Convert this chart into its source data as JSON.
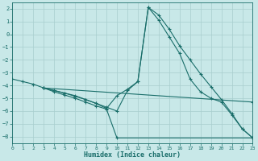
{
  "xlabel": "Humidex (Indice chaleur)",
  "bg_color": "#c8e8e8",
  "line_color": "#1a6e6a",
  "grid_color": "#a8cece",
  "xlim": [
    0,
    23
  ],
  "ylim": [
    -8.5,
    2.5
  ],
  "yticks": [
    2,
    1,
    0,
    -1,
    -2,
    -3,
    -4,
    -5,
    -6,
    -7,
    -8
  ],
  "xticks": [
    0,
    1,
    2,
    3,
    4,
    5,
    6,
    7,
    8,
    9,
    10,
    11,
    12,
    13,
    14,
    15,
    16,
    17,
    18,
    19,
    20,
    21,
    22,
    23
  ],
  "lines": [
    {
      "x": [
        0,
        1,
        2,
        3,
        4,
        5,
        6,
        7,
        8,
        9,
        10,
        11,
        12,
        13,
        14,
        15,
        16,
        17,
        18,
        19,
        20,
        21,
        22,
        23
      ],
      "y": [
        -3.5,
        -3.7,
        -3.9,
        -4.2,
        -4.4,
        -4.6,
        -4.8,
        -5.1,
        -5.4,
        -5.7,
        -6.0,
        -4.4,
        -3.7,
        2.1,
        1.5,
        0.4,
        -0.9,
        -2.0,
        -3.1,
        -4.1,
        -5.1,
        -6.2,
        -7.4,
        -8.1
      ]
    },
    {
      "x": [
        3,
        4,
        5,
        6,
        7,
        8,
        9,
        10,
        11,
        12,
        13,
        14,
        15,
        16,
        17,
        18,
        19,
        20,
        21,
        22,
        23
      ],
      "y": [
        -4.2,
        -4.4,
        -4.6,
        -4.85,
        -5.1,
        -5.4,
        -5.8,
        -4.8,
        -4.3,
        -3.7,
        2.1,
        1.1,
        -0.2,
        -1.5,
        -3.5,
        -4.5,
        -5.0,
        -5.3,
        -6.3,
        -7.4,
        -8.1
      ]
    },
    {
      "x": [
        3,
        4,
        5,
        6,
        7,
        8,
        9,
        10,
        23
      ],
      "y": [
        -4.2,
        -4.5,
        -4.75,
        -5.0,
        -5.3,
        -5.6,
        -5.85,
        -8.1,
        -8.1
      ]
    },
    {
      "x": [
        3,
        23
      ],
      "y": [
        -4.2,
        -5.3
      ]
    }
  ]
}
